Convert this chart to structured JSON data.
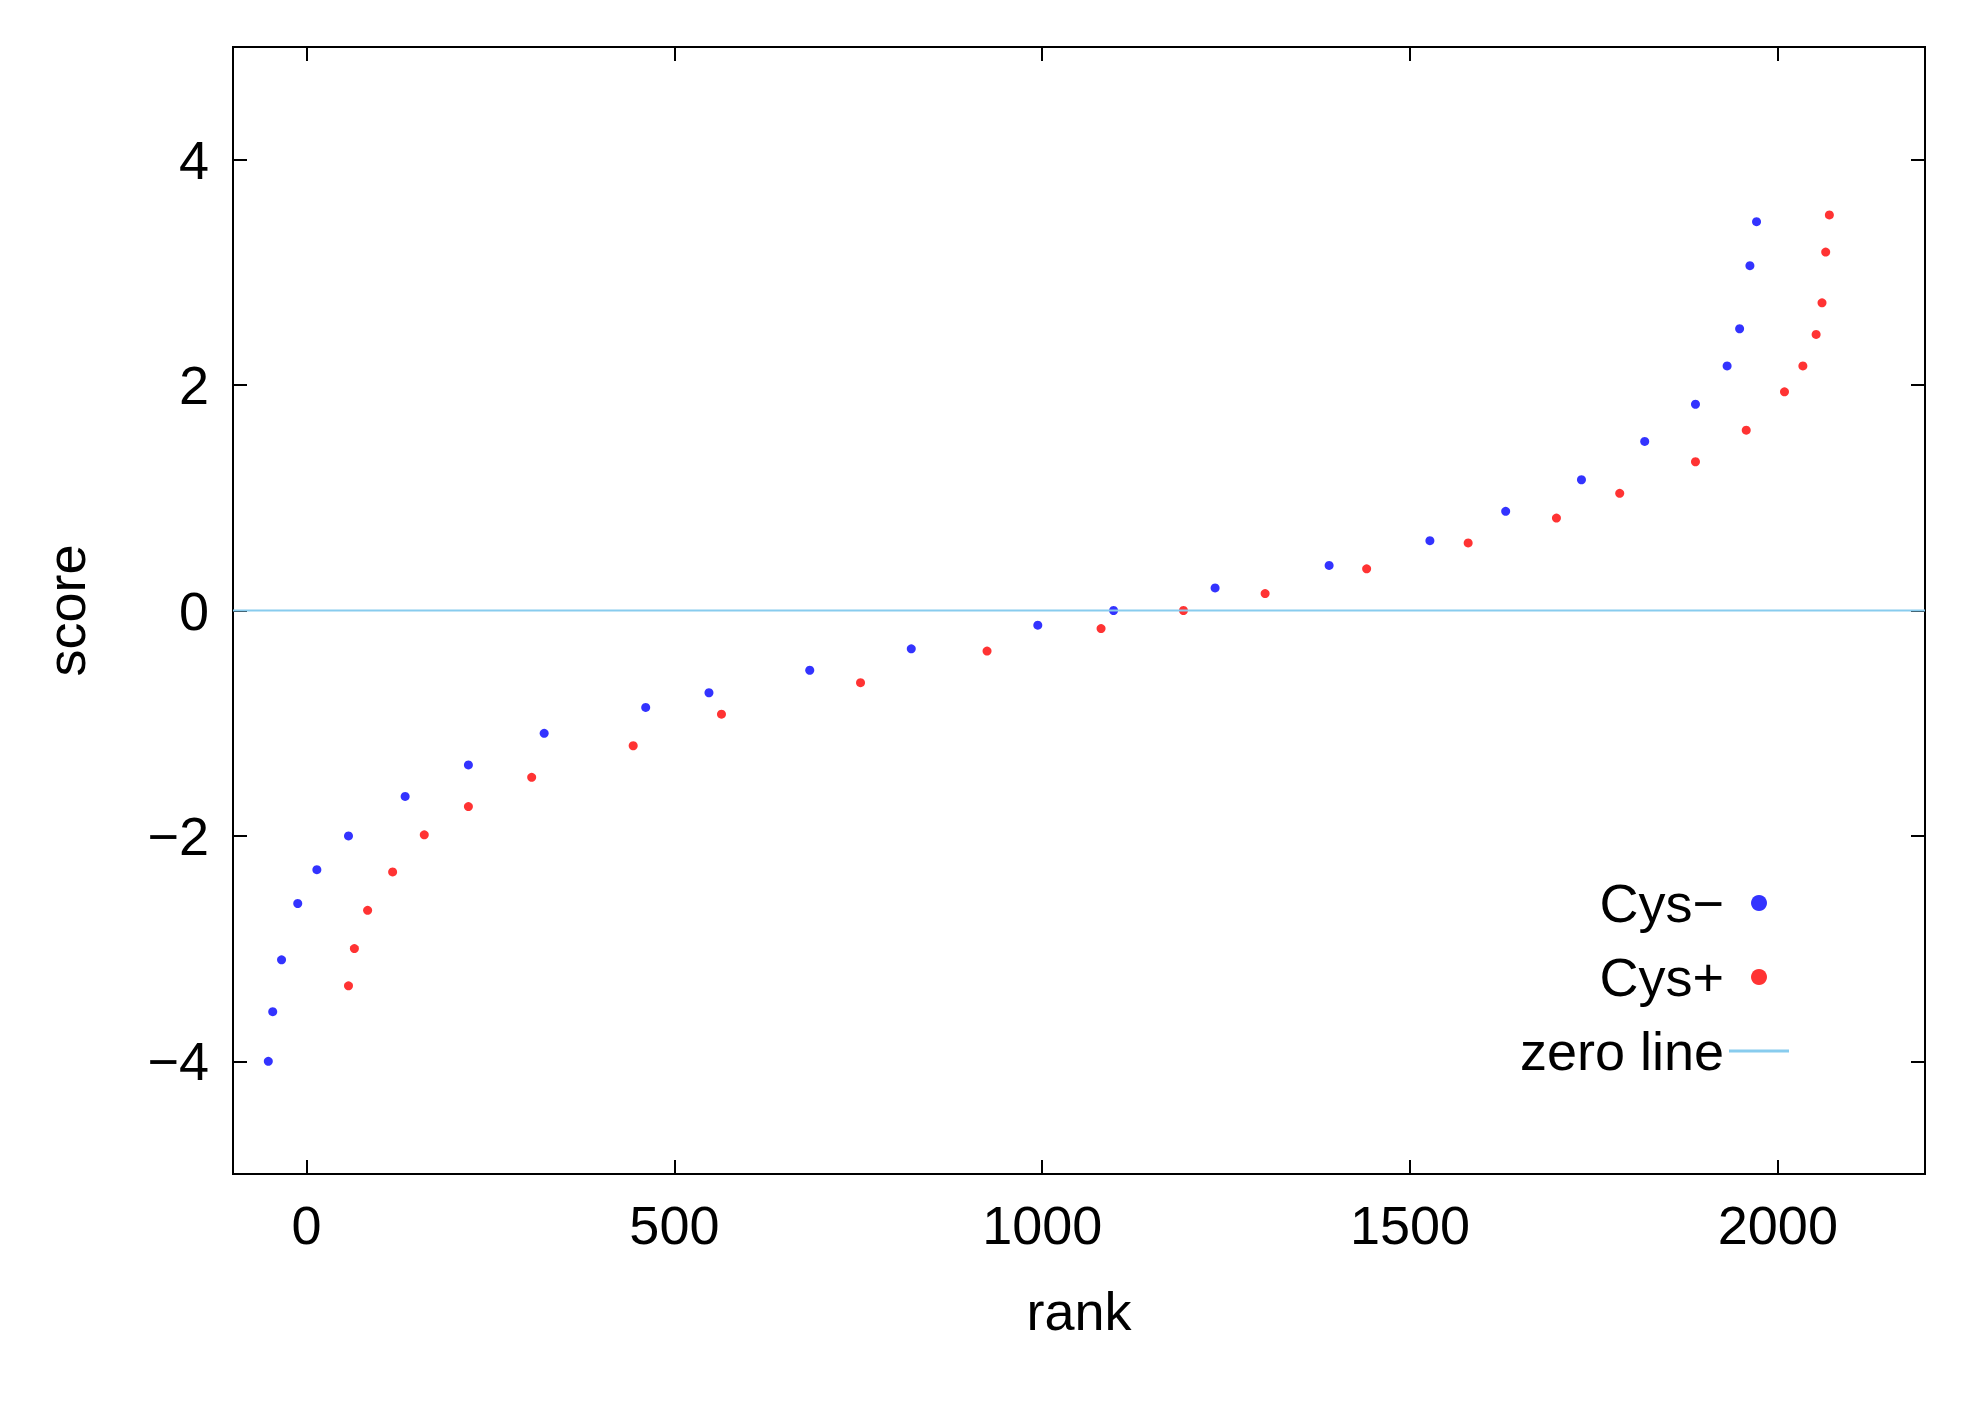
{
  "chart_data": {
    "type": "scatter",
    "xlabel": "rank",
    "ylabel": "score",
    "xlim": [
      -100,
      2200
    ],
    "xticks": [
      0,
      500,
      1000,
      1500,
      2000
    ],
    "ylim": [
      -5,
      5
    ],
    "yticks": [
      -4,
      -2,
      0,
      2,
      4
    ],
    "marker": "circle",
    "legend": "bottom right",
    "grid": false,
    "series": [
      {
        "name": "Cys−",
        "color": "#0000ff",
        "x": [
          -52,
          -46,
          -34,
          -12,
          14,
          57,
          134,
          220,
          323,
          461,
          547,
          684,
          822,
          994,
          1097,
          1235,
          1390,
          1527,
          1630,
          1733,
          1819,
          1888,
          1931,
          1948,
          1962,
          1971
        ],
        "values": [
          -4.0,
          -3.56,
          -3.1,
          -2.6,
          -2.3,
          -2.0,
          -1.65,
          -1.37,
          -1.09,
          -0.86,
          -0.73,
          -0.53,
          -0.34,
          -0.13,
          0.0,
          0.2,
          0.4,
          0.62,
          0.88,
          1.16,
          1.5,
          1.83,
          2.17,
          2.5,
          3.06,
          3.45
        ]
      },
      {
        "name": "Cys+",
        "color": "#ff0000",
        "x": [
          57,
          65,
          83,
          117,
          160,
          220,
          306,
          444,
          564,
          753,
          925,
          1080,
          1192,
          1303,
          1441,
          1579,
          1699,
          1785,
          1888,
          1957,
          2009,
          2034,
          2052,
          2060,
          2065,
          2070
        ],
        "values": [
          -3.33,
          -3.0,
          -2.66,
          -2.32,
          -1.99,
          -1.74,
          -1.48,
          -1.2,
          -0.92,
          -0.64,
          -0.36,
          -0.16,
          0.0,
          0.15,
          0.37,
          0.6,
          0.82,
          1.04,
          1.32,
          1.6,
          1.94,
          2.17,
          2.45,
          2.73,
          3.18,
          3.51
        ]
      }
    ],
    "ref_lines": [
      {
        "axis": "y",
        "value": 0,
        "label": "zero line",
        "color": "#88ccee"
      }
    ]
  }
}
